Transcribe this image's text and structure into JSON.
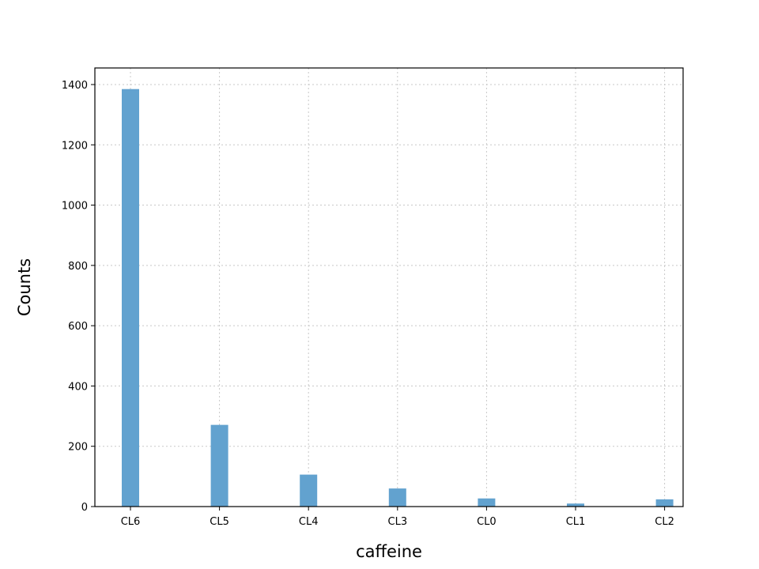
{
  "chart_data": {
    "type": "bar",
    "title": "",
    "xlabel": "caffeine",
    "ylabel": "Counts",
    "categories": [
      "CL6",
      "CL5",
      "CL4",
      "CL3",
      "CL0",
      "CL1",
      "CL2"
    ],
    "values": [
      1385,
      271,
      106,
      60,
      27,
      10,
      24
    ],
    "ylim": [
      0,
      1455
    ],
    "yticks": [
      0,
      200,
      400,
      600,
      800,
      1000,
      1200,
      1400
    ],
    "grid": true,
    "bar_color": "#62a2cf"
  }
}
